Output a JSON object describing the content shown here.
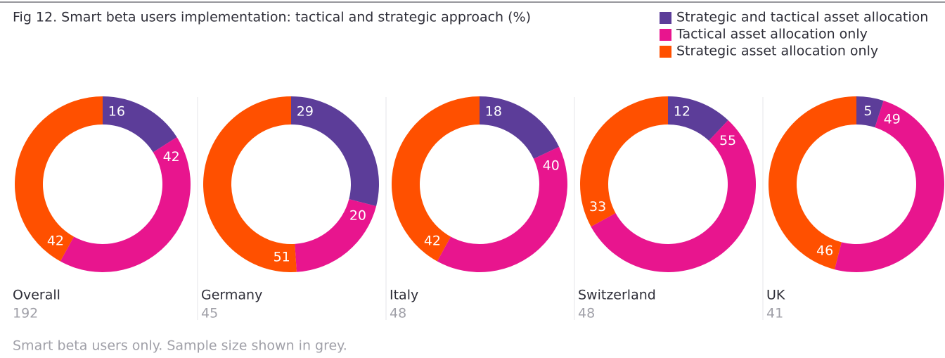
{
  "chart_data": {
    "type": "donut",
    "title": "Fig 12. Smart beta users implementation: tactical and strategic approach (%)",
    "categories": [
      "Overall",
      "Germany",
      "Italy",
      "Switzerland",
      "UK"
    ],
    "sample_sizes": [
      192,
      45,
      48,
      48,
      41
    ],
    "series": [
      {
        "name": "Strategic and tactical asset allocation",
        "color": "#5c3d99",
        "values": [
          16,
          29,
          18,
          12,
          5
        ]
      },
      {
        "name": "Tactical asset allocation only",
        "color": "#e8158e",
        "values": [
          42,
          20,
          40,
          55,
          49
        ]
      },
      {
        "name": "Strategic asset allocation only",
        "color": "#ff5000",
        "values": [
          42,
          51,
          42,
          33,
          46
        ]
      }
    ],
    "note": "Smart beta users only. Sample size shown in grey."
  }
}
